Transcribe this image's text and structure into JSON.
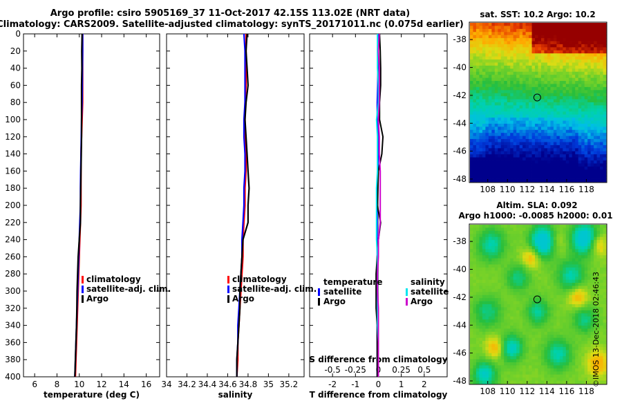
{
  "title_line1": "Argo profile: csiro 5905169_37 11-Oct-2017 42.15S 113.02E (NRT data)",
  "title_line2": "Climatology: CARS2009. Satellite-adjusted climatology: synTS_20171011.nc (0.075d earlier)",
  "credit": "©IMOS 13-Dec-2018 02:46:43",
  "colors": {
    "climatology": "#ff0000",
    "satellite": "#0000ff",
    "argo": "#000000",
    "satellite_s": "#00e5ee",
    "argo_s": "#cc00cc"
  },
  "chart_data": [
    {
      "type": "line",
      "panel": "temperature",
      "xlabel": "temperature (deg C)",
      "ylabel": "",
      "xlim": [
        5,
        17.2
      ],
      "xticks": [
        "6",
        "8",
        "10",
        "12",
        "14",
        "16"
      ],
      "ylim": [
        0,
        400
      ],
      "yticks": [
        "0",
        "20",
        "40",
        "60",
        "80",
        "100",
        "120",
        "140",
        "160",
        "180",
        "200",
        "220",
        "240",
        "260",
        "280",
        "300",
        "320",
        "340",
        "360",
        "380",
        "400"
      ],
      "depth": [
        0,
        20,
        40,
        60,
        80,
        100,
        120,
        140,
        160,
        180,
        200,
        220,
        240,
        260,
        280,
        300,
        320,
        340,
        360,
        380,
        400
      ],
      "series": [
        {
          "name": "climatology",
          "values": [
            10.3,
            10.3,
            10.3,
            10.3,
            10.3,
            10.25,
            10.2,
            10.15,
            10.15,
            10.15,
            10.15,
            10.1,
            10.05,
            10.0,
            9.95,
            9.9,
            9.85,
            9.8,
            9.75,
            9.7,
            9.65
          ]
        },
        {
          "name": "satellite-adj. clim.",
          "values": [
            10.3,
            10.3,
            10.28,
            10.27,
            10.25,
            10.2,
            10.18,
            10.15,
            10.12,
            10.1,
            10.1,
            10.05,
            10.0,
            9.95,
            9.9,
            9.85,
            9.8,
            9.75,
            9.7,
            9.65,
            9.6
          ]
        },
        {
          "name": "Argo",
          "values": [
            10.25,
            10.22,
            10.23,
            10.2,
            10.2,
            10.2,
            10.2,
            10.18,
            10.15,
            10.13,
            10.1,
            10.1,
            10.0,
            9.9,
            9.85,
            9.8,
            9.78,
            9.75,
            9.7,
            9.65,
            9.6
          ]
        }
      ],
      "legend": [
        "climatology",
        "satellite-adj. clim.",
        "Argo"
      ]
    },
    {
      "type": "line",
      "panel": "salinity",
      "xlabel": "salinity",
      "ylabel": "",
      "xlim": [
        34,
        35.35
      ],
      "xticks": [
        "34",
        "34.2",
        "34.4",
        "34.6",
        "34.8",
        "35",
        "35.2"
      ],
      "ylim": [
        0,
        400
      ],
      "depth": [
        0,
        20,
        40,
        60,
        80,
        100,
        120,
        140,
        160,
        180,
        200,
        220,
        240,
        260,
        280,
        300,
        320,
        340,
        360,
        380,
        400
      ],
      "series": [
        {
          "name": "climatology",
          "values": [
            34.78,
            34.78,
            34.78,
            34.78,
            34.77,
            34.77,
            34.77,
            34.78,
            34.78,
            34.77,
            34.77,
            34.76,
            34.75,
            34.75,
            34.74,
            34.73,
            34.72,
            34.71,
            34.7,
            34.7,
            34.69
          ]
        },
        {
          "name": "satellite-adj. clim.",
          "values": [
            34.76,
            34.77,
            34.77,
            34.77,
            34.77,
            34.76,
            34.76,
            34.77,
            34.77,
            34.76,
            34.76,
            34.75,
            34.74,
            34.74,
            34.73,
            34.72,
            34.71,
            34.7,
            34.7,
            34.69,
            34.69
          ]
        },
        {
          "name": "Argo",
          "values": [
            34.79,
            34.78,
            34.79,
            34.8,
            34.78,
            34.77,
            34.78,
            34.79,
            34.8,
            34.81,
            34.8,
            34.8,
            34.75,
            34.74,
            34.73,
            34.72,
            34.72,
            34.71,
            34.7,
            34.69,
            34.69
          ]
        }
      ],
      "legend": [
        "climatology",
        "satellite-adj. clim.",
        "Argo"
      ]
    },
    {
      "type": "line",
      "panel": "difference",
      "xlabel": "T difference from climatology",
      "xlabel_top": "S difference from climatology",
      "xlim": [
        -3,
        3
      ],
      "xticks": [
        "-2",
        "-1",
        "0",
        "1",
        "2"
      ],
      "s_ticks": [
        "-0.5",
        "-0.25",
        "0",
        "0.25",
        "0.5"
      ],
      "ylim": [
        0,
        400
      ],
      "depth": [
        0,
        20,
        40,
        60,
        80,
        100,
        120,
        140,
        160,
        180,
        200,
        220,
        240,
        260,
        280,
        300,
        320,
        340,
        360,
        380,
        400
      ],
      "series": [
        {
          "name": "temperature satellite",
          "values": [
            0.0,
            0.0,
            -0.02,
            -0.03,
            -0.05,
            -0.05,
            -0.02,
            0.0,
            -0.03,
            -0.05,
            -0.05,
            -0.05,
            -0.05,
            -0.05,
            -0.05,
            -0.05,
            -0.05,
            -0.05,
            -0.05,
            -0.05,
            -0.05
          ]
        },
        {
          "name": "temperature Argo",
          "values": [
            0.05,
            0.08,
            0.1,
            0.1,
            0.05,
            0.05,
            0.2,
            0.15,
            0.0,
            -0.02,
            -0.05,
            0.1,
            0.0,
            -0.05,
            -0.1,
            -0.1,
            -0.1,
            -0.05,
            -0.05,
            -0.05,
            -0.05
          ]
        },
        {
          "name": "salinity satellite",
          "values": [
            -0.01,
            -0.01,
            -0.01,
            0.0,
            0.0,
            -0.02,
            -0.01,
            -0.01,
            -0.01,
            -0.02,
            -0.02,
            -0.02,
            -0.02,
            -0.01,
            -0.01,
            -0.01,
            -0.01,
            -0.01,
            0.0,
            0.0,
            0.0
          ]
        },
        {
          "name": "salinity Argo",
          "values": [
            0.01,
            0.0,
            0.01,
            0.01,
            0.01,
            0.0,
            0.01,
            0.01,
            0.02,
            0.02,
            0.02,
            0.02,
            0.0,
            0.0,
            -0.01,
            -0.01,
            0.0,
            0.0,
            0.0,
            0.0,
            0.0
          ]
        }
      ],
      "legend_temperature": {
        "header": "temperature",
        "items": [
          "satellite",
          "Argo"
        ]
      },
      "legend_salinity": {
        "header": "salinity",
        "items": [
          "satellite",
          "Argo"
        ]
      }
    },
    {
      "type": "heatmap",
      "panel": "sst_map",
      "title": "sat. SST: 10.2 Argo: 10.2",
      "xticks": [
        "108",
        "110",
        "112",
        "114",
        "116",
        "118"
      ],
      "yticks": [
        "-38",
        "-40",
        "-42",
        "-44",
        "-46",
        "-48"
      ],
      "xlim": [
        106.2,
        120
      ],
      "ylim": [
        -48.2,
        -36.8
      ],
      "marker": {
        "lon": 113.02,
        "lat": -42.15
      }
    },
    {
      "type": "heatmap",
      "panel": "sla_map",
      "title": "Altim. SLA: 0.092",
      "subtitle": "Argo h1000: -0.0085 h2000: 0.01",
      "xticks": [
        "108",
        "110",
        "112",
        "114",
        "116",
        "118"
      ],
      "yticks": [
        "-38",
        "-40",
        "-42",
        "-44",
        "-46",
        "-48"
      ],
      "xlim": [
        106.2,
        120
      ],
      "ylim": [
        -48.2,
        -36.8
      ],
      "marker": {
        "lon": 113.02,
        "lat": -42.15
      }
    }
  ]
}
